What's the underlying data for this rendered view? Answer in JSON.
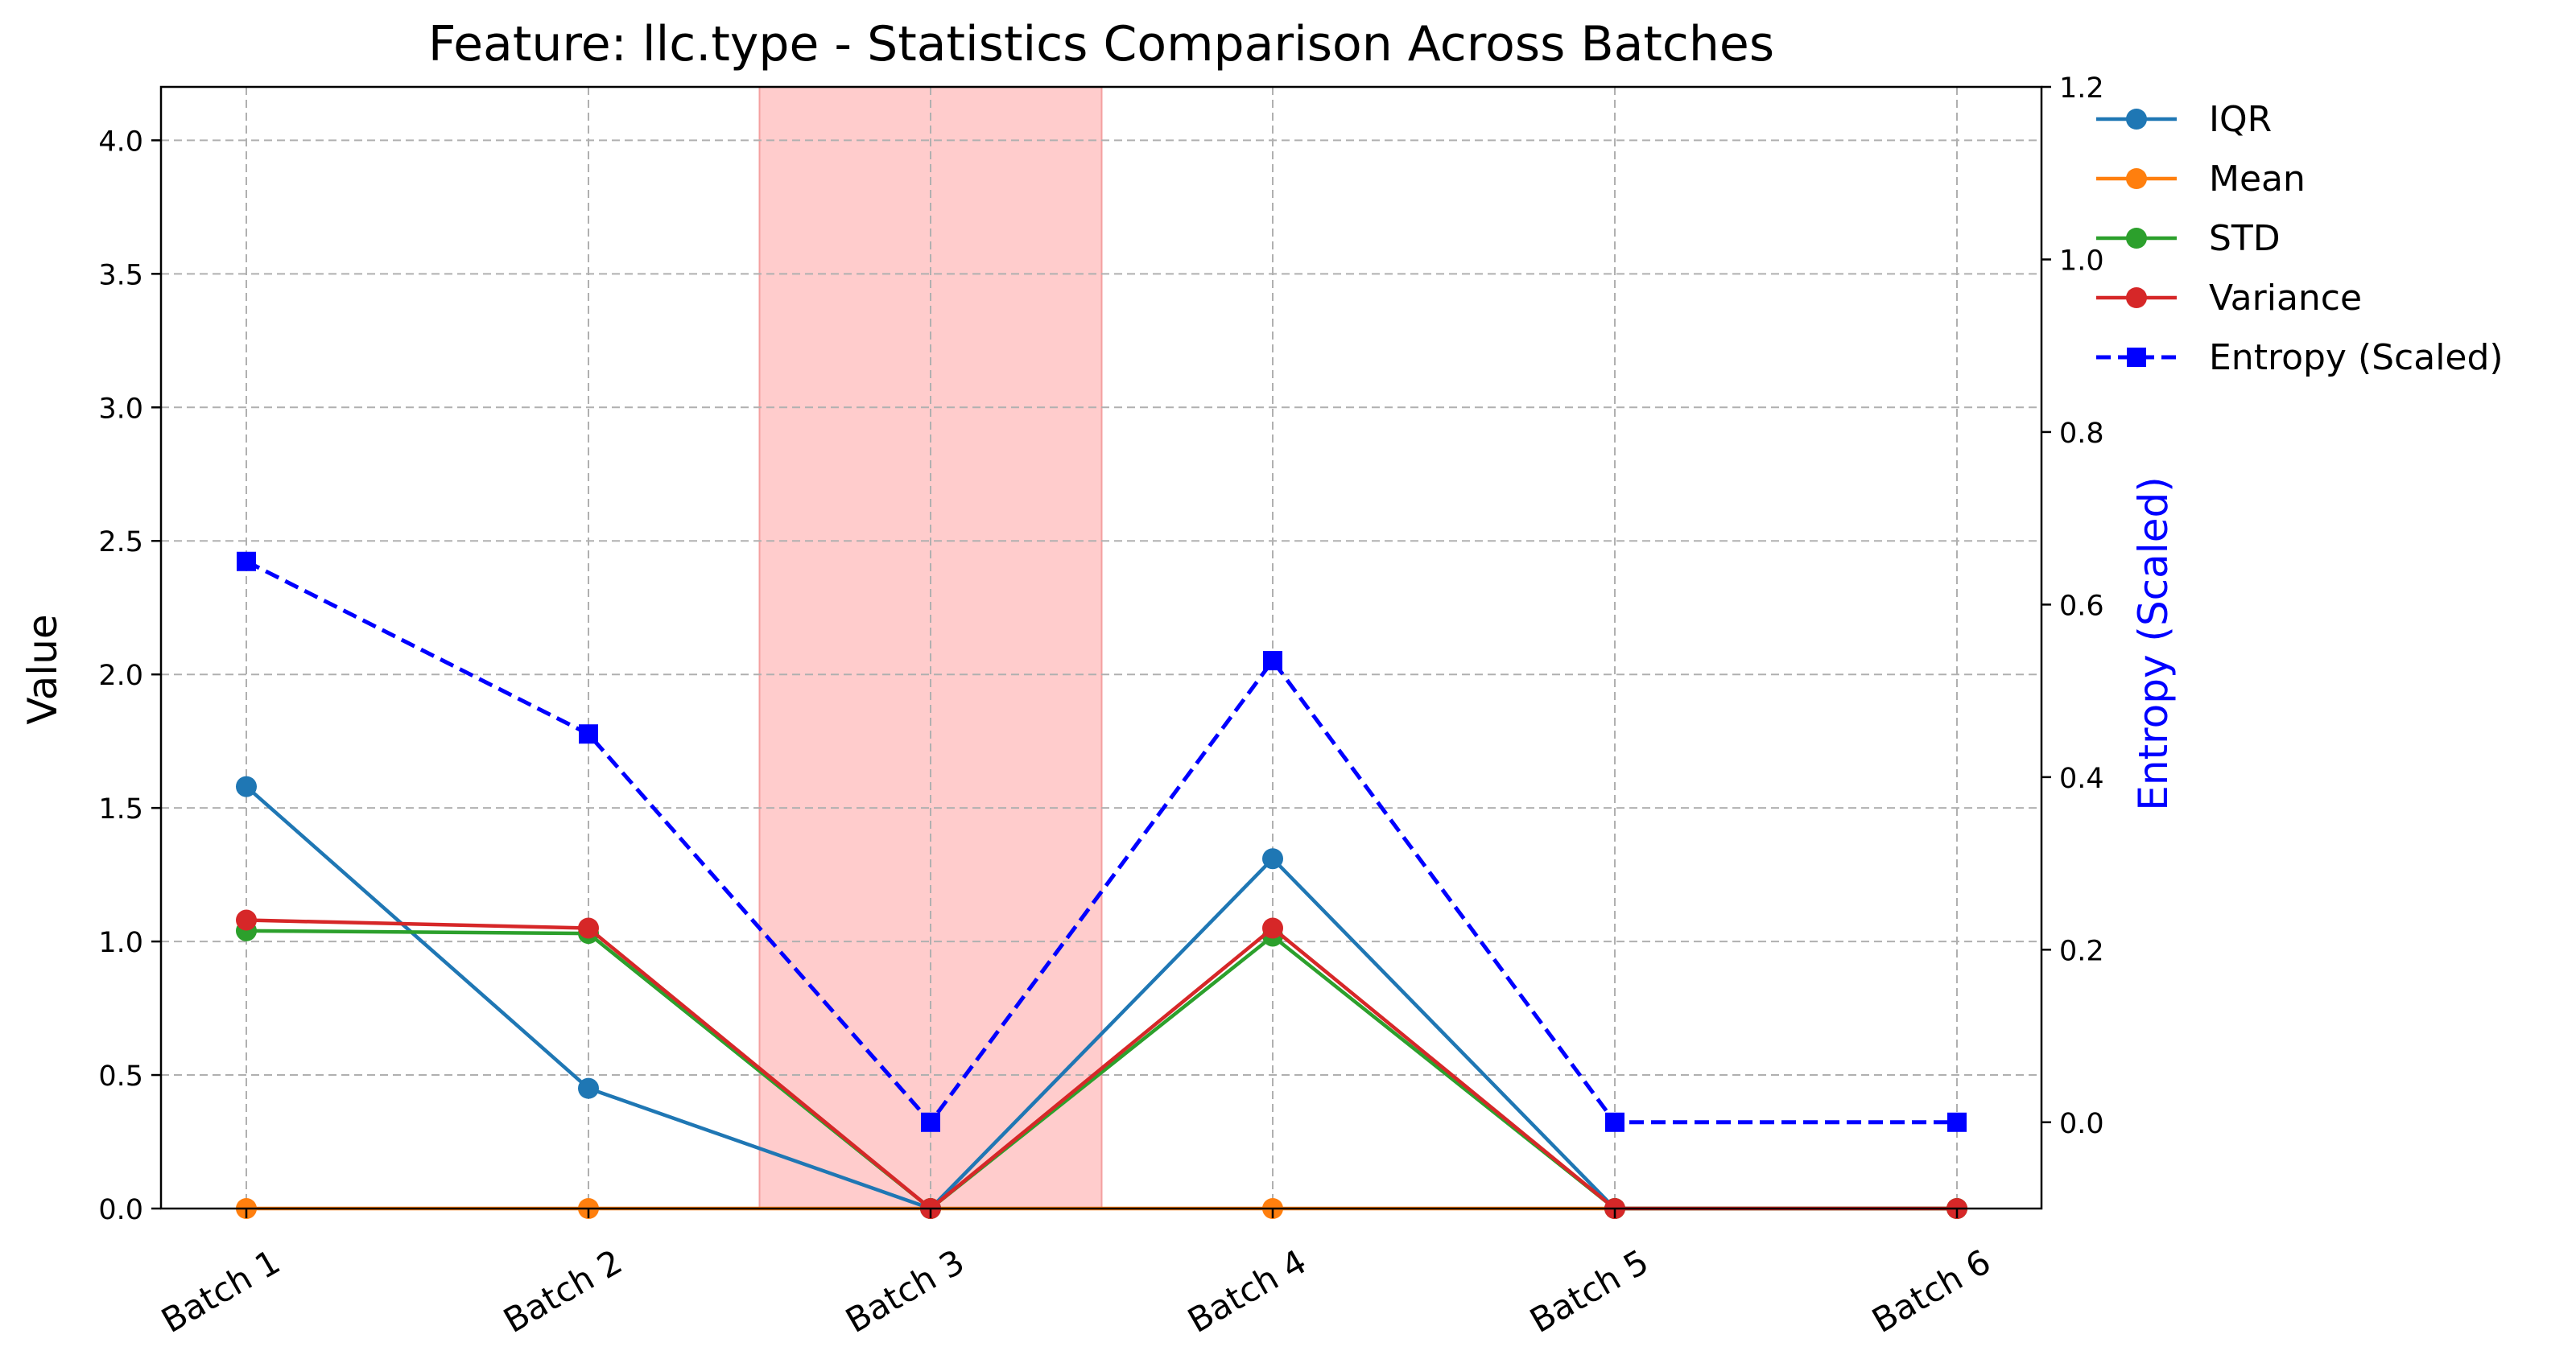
{
  "chart_data": {
    "type": "line",
    "title": "Feature: llc.type - Statistics Comparison Across Batches",
    "xlabel": "",
    "ylabel": "Value",
    "y2label": "Entropy (Scaled)",
    "categories": [
      "Batch 1",
      "Batch 2",
      "Batch 3",
      "Batch 4",
      "Batch 5",
      "Batch 6"
    ],
    "ylim": [
      0,
      4.2
    ],
    "yticks": [
      "0.0",
      "0.5",
      "1.0",
      "1.5",
      "2.0",
      "2.5",
      "3.0",
      "3.5",
      "4.0"
    ],
    "y2lim": [
      -0.1,
      1.2
    ],
    "y2ticks": [
      "0.0",
      "0.2",
      "0.4",
      "0.6",
      "0.8",
      "1.0",
      "1.2"
    ],
    "grid": true,
    "legend_position": "outside-top-right",
    "highlight": {
      "from_category": "Batch 3",
      "color": "#ffcccc"
    },
    "series": [
      {
        "name": "IQR",
        "axis": "left",
        "color": "#1f77b4",
        "marker": "circle",
        "dash": "solid",
        "values": [
          1.58,
          0.45,
          0.0,
          1.31,
          0.0,
          0.0
        ]
      },
      {
        "name": "Mean",
        "axis": "left",
        "color": "#ff7f0e",
        "marker": "circle",
        "dash": "solid",
        "values": [
          0.0,
          0.0,
          0.0,
          0.0,
          0.0,
          0.0
        ]
      },
      {
        "name": "STD",
        "axis": "left",
        "color": "#2ca02c",
        "marker": "circle",
        "dash": "solid",
        "values": [
          1.04,
          1.03,
          0.0,
          1.02,
          0.0,
          0.0
        ]
      },
      {
        "name": "Variance",
        "axis": "left",
        "color": "#d62728",
        "marker": "circle",
        "dash": "solid",
        "values": [
          1.08,
          1.05,
          0.0,
          1.05,
          0.0,
          0.0
        ]
      },
      {
        "name": "Entropy (Scaled)",
        "axis": "right",
        "color": "#0000ff",
        "marker": "square",
        "dash": "dashed",
        "values": [
          0.65,
          0.45,
          0.0,
          0.535,
          0.0,
          0.0
        ]
      }
    ]
  }
}
